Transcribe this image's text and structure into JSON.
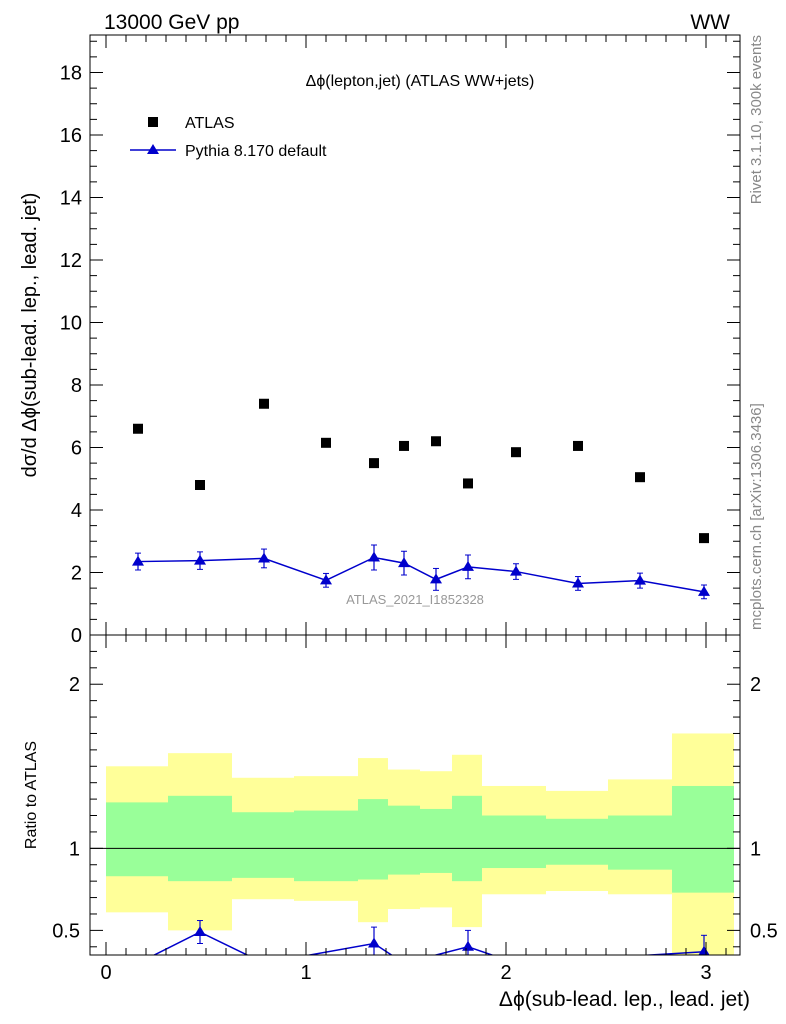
{
  "header": {
    "left": "13000 GeV pp",
    "right": "WW"
  },
  "side_labels": {
    "rivet": "Rivet 3.1.10,  300k events",
    "source": "mcplots.cern.ch [arXiv:1306.3436]"
  },
  "chart_data": [
    {
      "type": "scatter",
      "panel": "main",
      "title": "Δϕ(lepton,jet) (ATLAS WW+jets)",
      "ylabel": "dσ/d Δϕ(sub-lead. lep., lead. jet)",
      "xlabel": "",
      "watermark": "ATLAS_2021_I1852328",
      "xlim": [
        -0.08,
        3.17
      ],
      "ylim": [
        0,
        19.2
      ],
      "x_ticks": [
        0,
        1,
        2,
        3
      ],
      "y_ticks": [
        0,
        2,
        4,
        6,
        8,
        10,
        12,
        14,
        16,
        18
      ],
      "y_tick_labels": [
        "0",
        "2",
        "4",
        "6",
        "8",
        "10",
        "12",
        "14",
        "16",
        "18"
      ],
      "legend_position": "top-left",
      "x": [
        0.16,
        0.47,
        0.79,
        1.1,
        1.34,
        1.49,
        1.65,
        1.81,
        2.05,
        2.36,
        2.67,
        2.99
      ],
      "series": [
        {
          "name": "ATLAS",
          "color": "#000000",
          "marker": "square",
          "values": [
            6.6,
            4.8,
            7.4,
            6.15,
            5.5,
            6.05,
            6.2,
            4.85,
            5.85,
            6.05,
            5.05,
            3.1
          ]
        },
        {
          "name": "Pythia 8.170 default",
          "color": "#0000cc",
          "marker": "triangle",
          "line": true,
          "values": [
            2.35,
            2.38,
            2.45,
            1.75,
            2.48,
            2.3,
            1.78,
            2.18,
            2.03,
            1.65,
            1.74,
            1.38
          ],
          "errors": [
            0.27,
            0.28,
            0.3,
            0.22,
            0.4,
            0.38,
            0.35,
            0.38,
            0.25,
            0.22,
            0.24,
            0.22
          ]
        }
      ]
    },
    {
      "type": "line",
      "panel": "ratio",
      "ylabel": "Ratio to ATLAS",
      "xlabel": "Δϕ(sub-lead. lep., lead. jet)",
      "xlim": [
        -0.08,
        3.17
      ],
      "ylim": [
        0.35,
        2.3
      ],
      "x_ticks": [
        0,
        1,
        2,
        3
      ],
      "y_ticks": [
        0.5,
        1,
        2
      ],
      "y_tick_labels": [
        "0.5",
        "1",
        "2"
      ],
      "reference_line": 1,
      "bands": {
        "edges": [
          0.0,
          0.31,
          0.63,
          0.94,
          1.26,
          1.41,
          1.57,
          1.73,
          1.88,
          2.2,
          2.51,
          2.83,
          3.14
        ],
        "inner_color": "#99ff99",
        "outer_color": "#ffff99",
        "outer_low": [
          0.61,
          0.5,
          0.69,
          0.68,
          0.55,
          0.63,
          0.64,
          0.52,
          0.72,
          0.74,
          0.72,
          0.3
        ],
        "outer_high": [
          1.5,
          1.58,
          1.43,
          1.44,
          1.55,
          1.48,
          1.47,
          1.57,
          1.38,
          1.35,
          1.42,
          1.7
        ],
        "inner_low": [
          0.83,
          0.8,
          0.82,
          0.8,
          0.81,
          0.84,
          0.85,
          0.8,
          0.88,
          0.9,
          0.87,
          0.73
        ],
        "inner_high": [
          1.28,
          1.32,
          1.22,
          1.23,
          1.3,
          1.26,
          1.24,
          1.32,
          1.2,
          1.18,
          1.2,
          1.38
        ]
      },
      "series": [
        {
          "name": "Pythia 8.170 default",
          "color": "#0000cc",
          "marker": "triangle",
          "x": [
            0.16,
            0.47,
            0.79,
            1.34,
            1.49,
            1.81,
            2.05,
            2.99
          ],
          "values": [
            0.3,
            0.49,
            0.3,
            0.42,
            0.3,
            0.4,
            0.3,
            0.37
          ],
          "errors": [
            0,
            0.07,
            0,
            0.1,
            0,
            0.1,
            0,
            0.1
          ],
          "markers": [
            false,
            true,
            false,
            true,
            false,
            true,
            false,
            true
          ]
        }
      ]
    }
  ]
}
